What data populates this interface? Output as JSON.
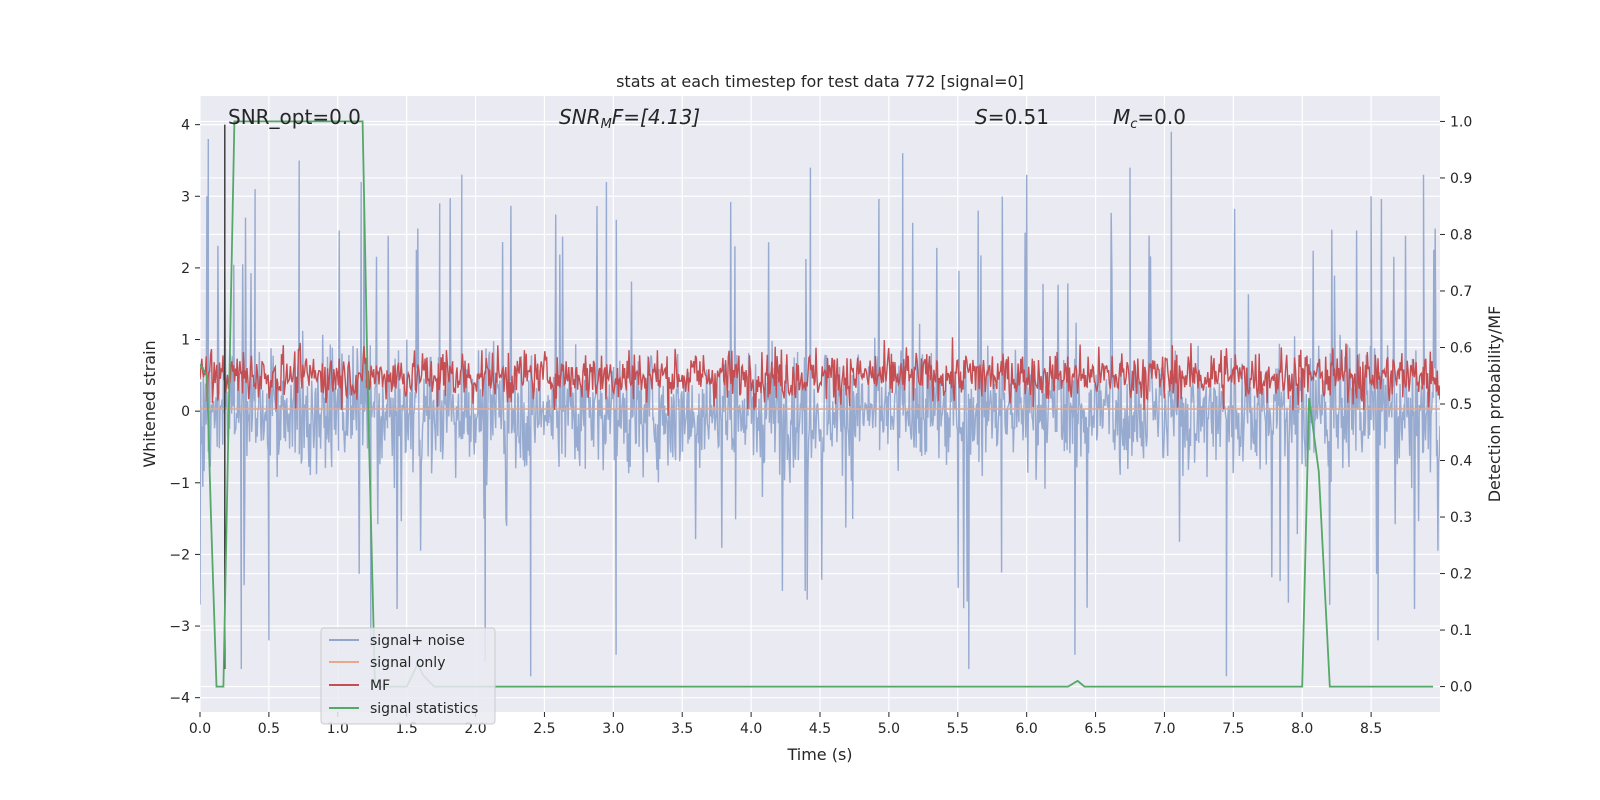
{
  "chart_data": {
    "type": "line",
    "title": "stats at each timestep for test data 772 [signal=0]",
    "xlabel": "Time (s)",
    "ylabel": "Whitened strain",
    "ylabel_right": "Detection probability/MF",
    "xlim": [
      0.0,
      9.0
    ],
    "ylim": [
      -4.2,
      4.4
    ],
    "ylim_right": [
      -0.045,
      1.045
    ],
    "x_ticks": [
      0.0,
      0.5,
      1.0,
      1.5,
      2.0,
      2.5,
      3.0,
      3.5,
      4.0,
      4.5,
      5.0,
      5.5,
      6.0,
      6.5,
      7.0,
      7.5,
      8.0,
      8.5
    ],
    "x_tick_labels": [
      "0.0",
      "0.5",
      "1.0",
      "1.5",
      "2.0",
      "2.5",
      "3.0",
      "3.5",
      "4.0",
      "4.5",
      "5.0",
      "5.5",
      "6.0",
      "6.5",
      "7.0",
      "7.5",
      "8.0",
      "8.5"
    ],
    "y_ticks": [
      4,
      3,
      2,
      1,
      0,
      -1,
      -2,
      -3,
      -4
    ],
    "y_tick_labels": [
      "4",
      "3",
      "2",
      "1",
      "0",
      "−1",
      "−2",
      "−3",
      "−4"
    ],
    "y_ticks_right": [
      1.0,
      0.9,
      0.8,
      0.7,
      0.6,
      0.5,
      0.4,
      0.3,
      0.2,
      0.1,
      0.0
    ],
    "y_tick_labels_right": [
      "1.0",
      "0.9",
      "0.8",
      "0.7",
      "0.6",
      "0.5",
      "0.4",
      "0.3",
      "0.2",
      "0.1",
      "0.0"
    ],
    "grid": true,
    "legend_position": "lower-left",
    "annotations": {
      "snr_opt": "SNR_opt=0.0",
      "snr_mf_prefix": "SNR",
      "snr_mf_sub": "M",
      "snr_mf_suffix": "F=[4.13]",
      "s_var": "S",
      "s_value": "=0.51",
      "mc_var": "M",
      "mc_sub": "c",
      "mc_value": "=0.0"
    },
    "marker_line_x": 0.18,
    "series": [
      {
        "name": "signal+ noise",
        "color": "#92a6cc",
        "axis": "left",
        "envelope": {
          "x_range": [
            0.0,
            9.0
          ],
          "typical_band": [
            -1.5,
            1.6
          ],
          "peak_range": [
            -3.7,
            3.9
          ],
          "spikes_up": [
            [
              0.05,
              3.0
            ],
            [
              0.06,
              3.8
            ],
            [
              0.4,
              3.1
            ],
            [
              0.72,
              3.5
            ],
            [
              1.17,
              3.2
            ],
            [
              1.74,
              2.9
            ],
            [
              1.9,
              3.3
            ],
            [
              2.95,
              3.2
            ],
            [
              4.43,
              3.4
            ],
            [
              5.1,
              3.6
            ],
            [
              6.0,
              3.3
            ],
            [
              6.75,
              3.4
            ],
            [
              7.05,
              3.9
            ],
            [
              8.5,
              3.0
            ],
            [
              8.88,
              3.3
            ]
          ],
          "spikes_down": [
            [
              0.0,
              -2.7
            ],
            [
              0.3,
              -3.6
            ],
            [
              0.5,
              -3.2
            ],
            [
              1.24,
              -3.3
            ],
            [
              2.07,
              -3.5
            ],
            [
              2.4,
              -3.7
            ],
            [
              3.02,
              -3.4
            ],
            [
              5.58,
              -3.6
            ],
            [
              6.35,
              -3.4
            ],
            [
              7.45,
              -3.7
            ],
            [
              8.55,
              -3.2
            ]
          ]
        }
      },
      {
        "name": "signal only",
        "color": "#e8a88c",
        "axis": "left",
        "x": [
          0.0,
          9.0
        ],
        "y": [
          0.03,
          0.03
        ]
      },
      {
        "name": "MF",
        "color": "#c44e52",
        "axis": "right",
        "envelope": {
          "x_range": [
            0.0,
            9.0
          ],
          "band": [
            0.48,
            0.62
          ],
          "peak_range": [
            0.47,
            0.6
          ]
        }
      },
      {
        "name": "signal statistics",
        "color": "#55a868",
        "axis": "right",
        "x": [
          0.0,
          0.05,
          0.08,
          0.12,
          0.17,
          0.25,
          0.3,
          1.0,
          1.18,
          1.22,
          1.27,
          1.32,
          1.5,
          1.58,
          1.62,
          1.7,
          6.3,
          6.37,
          6.42,
          8.0,
          8.05,
          8.12,
          8.2,
          8.95
        ],
        "y": [
          0.57,
          0.55,
          0.3,
          0.0,
          0.0,
          1.0,
          1.0,
          1.0,
          1.0,
          0.5,
          0.0,
          0.0,
          0.0,
          0.04,
          0.02,
          0.0,
          0.0,
          0.01,
          0.0,
          0.0,
          0.51,
          0.38,
          0.0,
          0.0
        ]
      }
    ]
  }
}
